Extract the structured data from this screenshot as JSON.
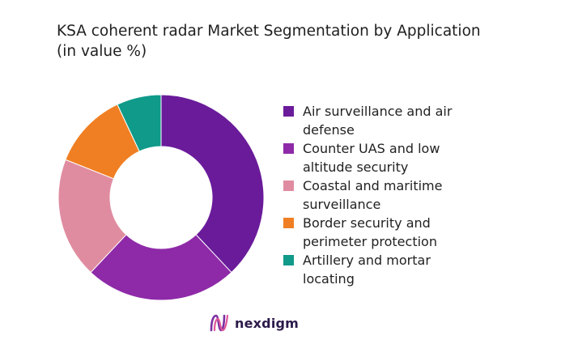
{
  "title_line1": "KSA coherent radar Market Segmentation by Application",
  "title_line2": "(in value %)",
  "brand": "nexdigm",
  "chart_data": {
    "type": "pie",
    "variant": "donut",
    "title": "KSA coherent radar Market Segmentation by Application (in value %)",
    "categories": [
      "Air surveillance and air defense",
      "Counter UAS and low altitude security",
      "Coastal and maritime surveillance",
      "Border security and perimeter protection",
      "Artillery and mortar locating"
    ],
    "values": [
      38,
      24,
      19,
      12,
      7
    ],
    "colors": [
      "#6a1b9a",
      "#8e2aa8",
      "#e08ca0",
      "#f07f23",
      "#0f9a8a"
    ],
    "legend_position": "right"
  },
  "legend": [
    {
      "line1": "Air surveillance and air",
      "line2": "defense"
    },
    {
      "line1": "Counter UAS and low",
      "line2": "altitude security"
    },
    {
      "line1": "Coastal and maritime",
      "line2": "surveillance"
    },
    {
      "line1": "Border security and",
      "line2": "perimeter protection"
    },
    {
      "line1": "Artillery and mortar",
      "line2": "locating"
    }
  ]
}
